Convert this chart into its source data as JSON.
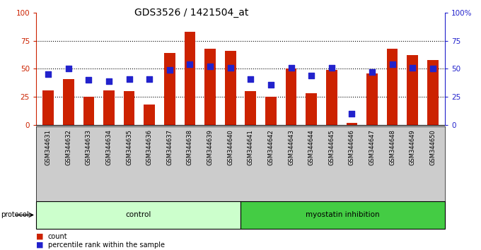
{
  "title": "GDS3526 / 1421504_at",
  "samples": [
    "GSM344631",
    "GSM344632",
    "GSM344633",
    "GSM344634",
    "GSM344635",
    "GSM344636",
    "GSM344637",
    "GSM344638",
    "GSM344639",
    "GSM344640",
    "GSM344641",
    "GSM344642",
    "GSM344643",
    "GSM344644",
    "GSM344645",
    "GSM344646",
    "GSM344647",
    "GSM344648",
    "GSM344649",
    "GSM344650"
  ],
  "count_values": [
    31,
    41,
    25,
    31,
    30,
    18,
    64,
    83,
    68,
    66,
    30,
    25,
    50,
    28,
    49,
    2,
    46,
    68,
    62,
    58
  ],
  "percentile_values": [
    45,
    50,
    40,
    39,
    41,
    41,
    49,
    54,
    52,
    51,
    41,
    36,
    51,
    44,
    51,
    10,
    47,
    54,
    51,
    50
  ],
  "bar_color": "#cc2200",
  "dot_color": "#2222cc",
  "control_bg": "#ccffcc",
  "myostatin_bg": "#44cc44",
  "protocol_label": "protocol",
  "control_label": "control",
  "myostatin_label": "myostatin inhibition",
  "legend_count": "count",
  "legend_percentile": "percentile rank within the sample",
  "ylim": [
    0,
    100
  ],
  "yticks": [
    0,
    25,
    50,
    75,
    100
  ],
  "background_color": "#ffffff",
  "axis_color_left": "#cc2200",
  "axis_color_right": "#2222cc",
  "title_fontsize": 10,
  "label_fontsize": 6,
  "grid_color": "black",
  "grid_linestyle": "dotted",
  "grid_linewidth": 0.8
}
